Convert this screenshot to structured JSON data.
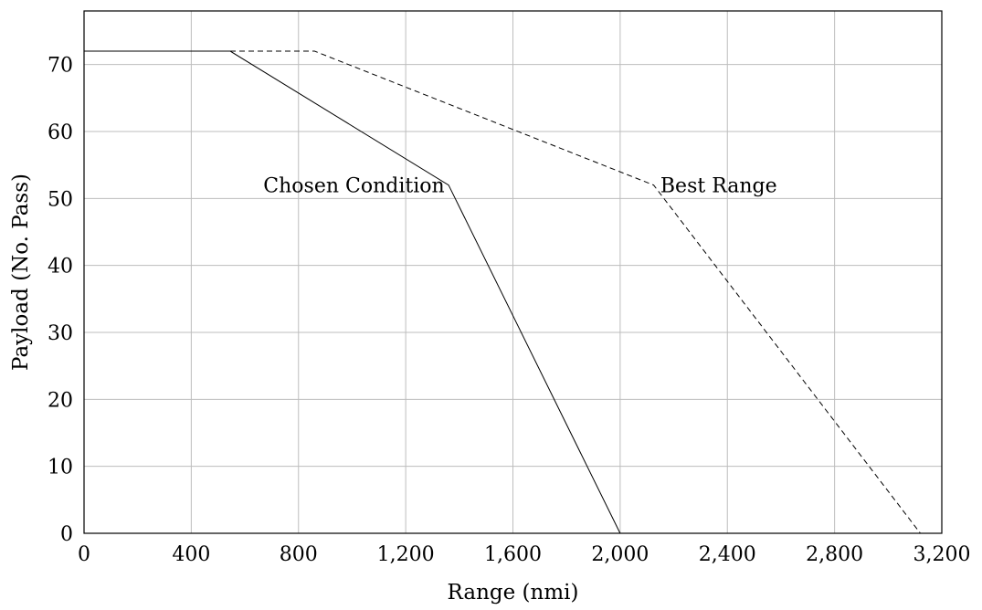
{
  "chart_data": {
    "type": "line",
    "title": "",
    "xlabel": "Range (nmi)",
    "ylabel": "Payload (No. Pass)",
    "xlim": [
      0,
      3200
    ],
    "ylim": [
      0,
      78
    ],
    "x_ticks": [
      0,
      400,
      800,
      1200,
      1600,
      2000,
      2400,
      2800,
      3200
    ],
    "x_tick_labels": [
      "0",
      "400",
      "800",
      "1,200",
      "1,600",
      "2,000",
      "2,400",
      "2,800",
      "3,200"
    ],
    "y_ticks": [
      0,
      10,
      20,
      30,
      40,
      50,
      60,
      70
    ],
    "y_tick_labels": [
      "0",
      "10",
      "20",
      "30",
      "40",
      "50",
      "60",
      "70"
    ],
    "grid": true,
    "legend": "none",
    "series": [
      {
        "style": "solid",
        "color": "#000000",
        "x": [
          0,
          545,
          1360,
          2000
        ],
        "y": [
          72,
          72,
          52,
          0
        ]
      },
      {
        "style": "dashed",
        "color": "#000000",
        "x": [
          0,
          860,
          2125,
          3120
        ],
        "y": [
          72,
          72,
          52,
          0
        ]
      }
    ],
    "annotations": [
      {
        "text": "Chosen Condition",
        "x": 1345,
        "y": 52,
        "anchor": "end"
      },
      {
        "text": "Best Range",
        "x": 2150,
        "y": 52,
        "anchor": "start"
      }
    ]
  }
}
